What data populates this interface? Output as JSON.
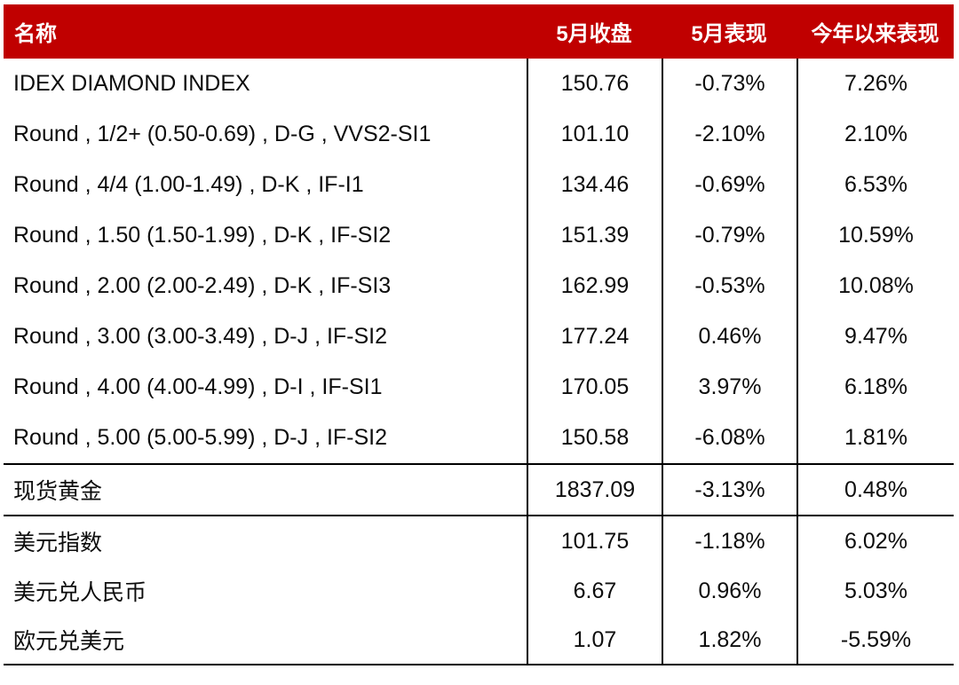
{
  "style": {
    "header_bg": "#C00000",
    "header_text_color": "#FFFFFF",
    "body_text_color": "#0D0D0D",
    "line_color": "#000000"
  },
  "chart_data": {
    "type": "table",
    "columns": [
      "名称",
      "5月收盘",
      "5月表现",
      "今年以来表现"
    ],
    "rows": [
      {
        "name": "IDEX DIAMOND INDEX",
        "may_close": "150.76",
        "may_perf": "-0.73%",
        "ytd_perf": "7.26%",
        "group": "diamond"
      },
      {
        "name": "Round , 1/2+ (0.50-0.69) , D-G , VVS2-SI1",
        "may_close": "101.10",
        "may_perf": "-2.10%",
        "ytd_perf": "2.10%",
        "group": "diamond"
      },
      {
        "name": "Round , 4/4 (1.00-1.49) , D-K , IF-I1",
        "may_close": "134.46",
        "may_perf": "-0.69%",
        "ytd_perf": "6.53%",
        "group": "diamond"
      },
      {
        "name": "Round , 1.50 (1.50-1.99) , D-K , IF-SI2",
        "may_close": "151.39",
        "may_perf": "-0.79%",
        "ytd_perf": "10.59%",
        "group": "diamond"
      },
      {
        "name": "Round , 2.00 (2.00-2.49) , D-K , IF-SI3",
        "may_close": "162.99",
        "may_perf": "-0.53%",
        "ytd_perf": "10.08%",
        "group": "diamond"
      },
      {
        "name": "Round , 3.00 (3.00-3.49) , D-J , IF-SI2",
        "may_close": "177.24",
        "may_perf": "0.46%",
        "ytd_perf": "9.47%",
        "group": "diamond"
      },
      {
        "name": "Round , 4.00 (4.00-4.99) , D-I , IF-SI1",
        "may_close": "170.05",
        "may_perf": "3.97%",
        "ytd_perf": "6.18%",
        "group": "diamond"
      },
      {
        "name": "Round , 5.00 (5.00-5.99) , D-J , IF-SI2",
        "may_close": "150.58",
        "may_perf": "-6.08%",
        "ytd_perf": "1.81%",
        "group": "diamond"
      },
      {
        "name": "现货黄金",
        "may_close": "1837.09",
        "may_perf": "-3.13%",
        "ytd_perf": "0.48%",
        "group": "gold"
      },
      {
        "name": "美元指数",
        "may_close": "101.75",
        "may_perf": "-1.18%",
        "ytd_perf": "6.02%",
        "group": "fx"
      },
      {
        "name": "美元兑人民币",
        "may_close": "6.67",
        "may_perf": "0.96%",
        "ytd_perf": "5.03%",
        "group": "fx"
      },
      {
        "name": "欧元兑美元",
        "may_close": "1.07",
        "may_perf": "1.82%",
        "ytd_perf": "-5.59%",
        "group": "fx"
      }
    ]
  }
}
